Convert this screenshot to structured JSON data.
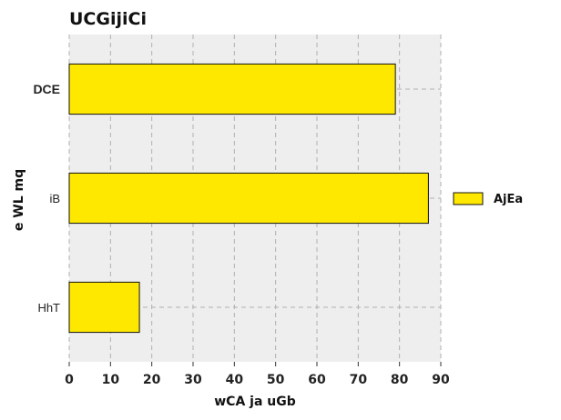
{
  "chart_data": {
    "type": "bar",
    "orientation": "horizontal",
    "title": "UCGijiCi",
    "xlabel": "wCA ja uGb",
    "ylabel": "e WL mq",
    "categories": [
      "DCE",
      "iB",
      "HhT"
    ],
    "series": [
      {
        "name": "AjEa",
        "values": [
          79,
          87,
          17
        ],
        "color": "#ffe800"
      }
    ],
    "xlim": [
      0,
      90
    ],
    "xticks": [
      0,
      10,
      20,
      30,
      40,
      50,
      60,
      70,
      80,
      90
    ],
    "grid": true,
    "legend": "right",
    "colors": {
      "background": "#eeeeee",
      "grid": "#b0b0b0"
    }
  }
}
